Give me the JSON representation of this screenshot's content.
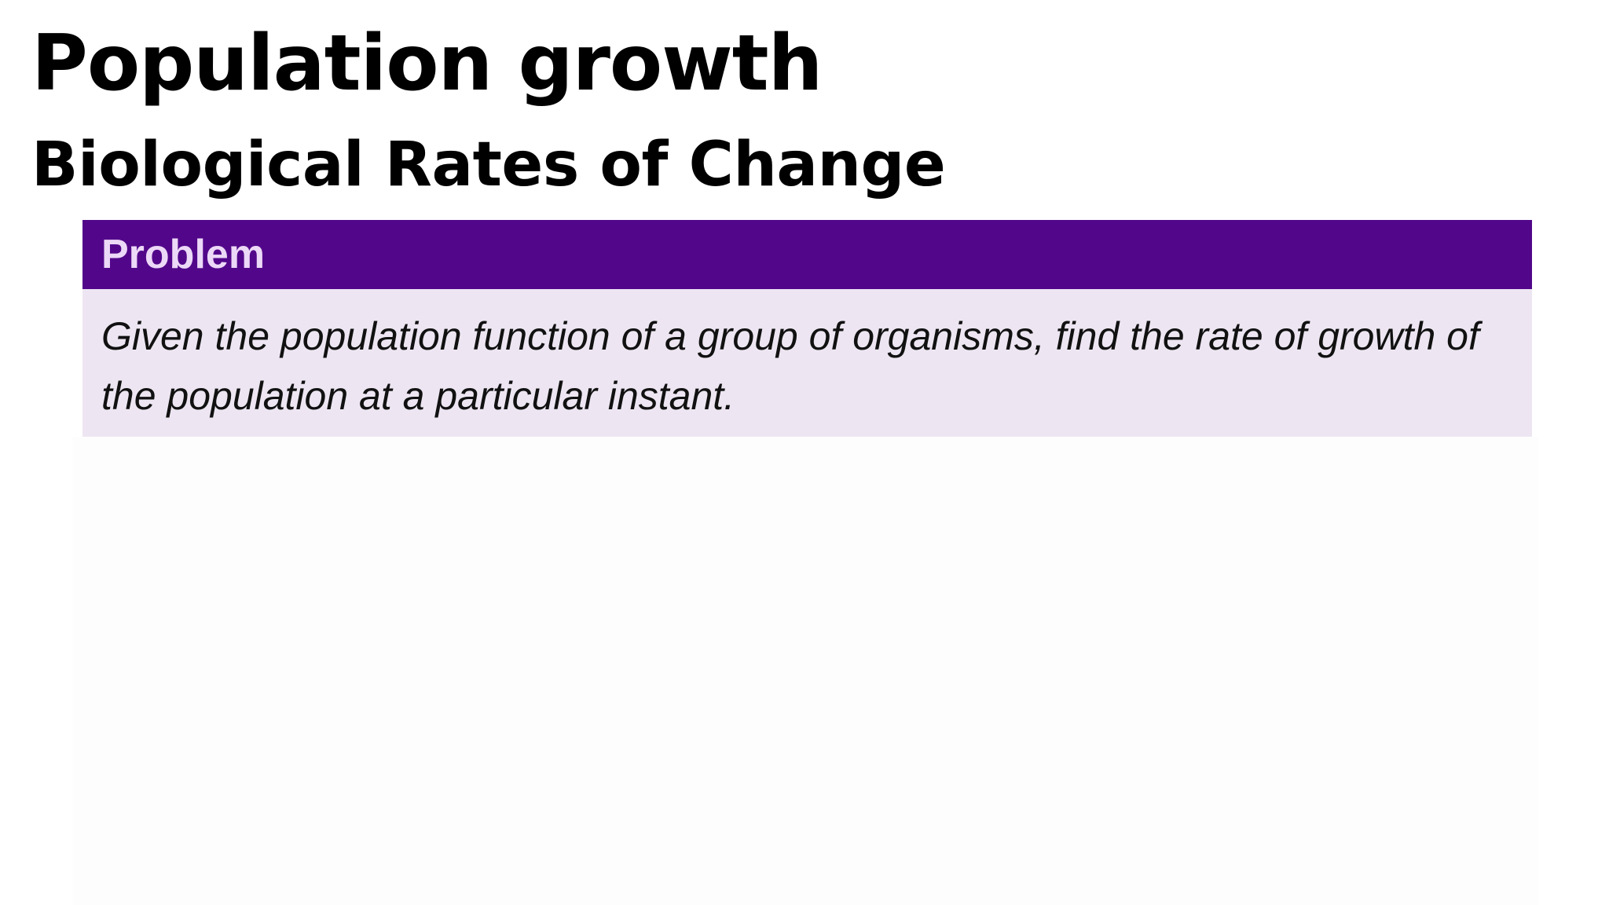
{
  "slide": {
    "title": "Population growth",
    "subtitle": "Biological Rates of Change"
  },
  "problem": {
    "header": "Problem",
    "text": "Given the population function of a group of organisms, find the rate of growth of the population at a particular instant."
  },
  "colors": {
    "header_bg": "#52078a",
    "header_text": "#ecd8f7",
    "body_bg": "#ede6f2"
  }
}
